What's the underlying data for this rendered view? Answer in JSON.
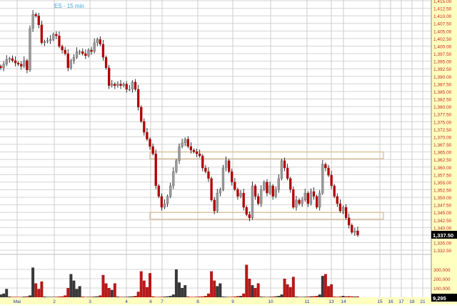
{
  "chart_data": {
    "type": "candlestick",
    "title": "ES - 15 min",
    "price_axis": {
      "ylim": [
        1332.5,
        1415.0
      ],
      "tick_step": 2.5,
      "tick_labels": [
        "1,415.00",
        "1,412.50",
        "1,410.00",
        "1,407.50",
        "1,405.00",
        "1,402.50",
        "1,400.00",
        "1,397.50",
        "1,395.00",
        "1,392.50",
        "1,390.00",
        "1,387.50",
        "1,385.00",
        "1,382.50",
        "1,380.00",
        "1,377.50",
        "1,375.00",
        "1,372.50",
        "1,370.00",
        "1,367.50",
        "1,365.00",
        "1,362.50",
        "1,360.00",
        "1,357.50",
        "1,355.00",
        "1,352.50",
        "1,350.00",
        "1,347.50",
        "1,345.00",
        "1,342.50",
        "1,340.00",
        "1,337.50",
        "1,335.00",
        "1,332.50"
      ],
      "last_price_label": "1,337.50"
    },
    "volume_axis": {
      "tick_labels": [
        "300,000",
        "200,000",
        "100,000"
      ],
      "tick_values": [
        300000,
        200000,
        100000
      ],
      "last_volume_label": "9,295"
    },
    "date_labels": [
      "Mai",
      "2",
      "3",
      "4",
      "6",
      "7",
      "8",
      "9",
      "10",
      "11",
      "13",
      "14",
      "15",
      "16",
      "17",
      "18",
      "21"
    ],
    "grid": true,
    "colors": {
      "down": "#b00000",
      "up": "#999999",
      "wick": "#000000",
      "axis_bg": "#ffffc0",
      "axis_text": "#cc2020",
      "date_text": "#2030c0",
      "title": "#40a8e0",
      "zone": "#d8b890"
    },
    "closes": [
      1392.8,
      1394.0,
      1395.6,
      1395.9,
      1395.2,
      1394.4,
      1394.0,
      1393.3,
      1395.2,
      1392.1,
      1405.8,
      1410.5,
      1410.0,
      1407.0,
      1401.1,
      1401.5,
      1401.8,
      1402.2,
      1403.9,
      1403.4,
      1399.9,
      1398.7,
      1397.5,
      1392.8,
      1395.2,
      1396.3,
      1398.2,
      1398.2,
      1397.5,
      1396.8,
      1398.7,
      1398.2,
      1401.1,
      1402.2,
      1400.6,
      1396.3,
      1392.8,
      1386.9,
      1387.4,
      1386.9,
      1387.4,
      1386.9,
      1387.4,
      1385.7,
      1385.7,
      1388.1,
      1385.7,
      1379.8,
      1375.1,
      1371.5,
      1369.2,
      1366.8,
      1364.4,
      1353.8,
      1350.3,
      1346.7,
      1347.9,
      1350.3,
      1353.8,
      1358.5,
      1362.1,
      1366.8,
      1368.0,
      1369.2,
      1366.8,
      1365.6,
      1365.1,
      1364.4,
      1363.7,
      1359.7,
      1358.5,
      1356.2,
      1349.1,
      1345.5,
      1351.4,
      1352.6,
      1359.7,
      1362.1,
      1358.5,
      1355.0,
      1352.6,
      1350.3,
      1351.4,
      1346.7,
      1344.3,
      1343.2,
      1353.8,
      1350.3,
      1347.9,
      1352.6,
      1355.0,
      1351.4,
      1353.8,
      1350.3,
      1352.6,
      1356.2,
      1362.1,
      1359.7,
      1356.2,
      1352.6,
      1346.7,
      1349.1,
      1347.9,
      1349.1,
      1351.4,
      1347.9,
      1351.9,
      1350.3,
      1346.7,
      1351.4,
      1360.9,
      1359.7,
      1357.3,
      1353.8,
      1350.3,
      1347.9,
      1345.5,
      1346.7,
      1343.2,
      1340.8,
      1338.4,
      1338.9,
      1337.5
    ],
    "volumes": [
      30000,
      40000,
      90000,
      8000,
      5000,
      5000,
      5000,
      5000,
      8000,
      10000,
      20000,
      320000,
      150000,
      90000,
      170000,
      8000,
      5000,
      5000,
      5000,
      6000,
      8000,
      10000,
      20000,
      100000,
      250000,
      180000,
      90000,
      120000,
      8000,
      5000,
      5000,
      6000,
      8000,
      10000,
      20000,
      240000,
      150000,
      100000,
      80000,
      150000,
      8000,
      5000,
      5000,
      6000,
      8000,
      10000,
      15000,
      60000,
      280000,
      180000,
      110000,
      260000,
      10000,
      5000,
      5000,
      6000,
      8000,
      10000,
      15000,
      30000,
      300000,
      160000,
      100000,
      130000,
      8000,
      5000,
      5000,
      6000,
      8000,
      10000,
      15000,
      40000,
      280000,
      180000,
      120000,
      150000,
      8000,
      6000,
      5000,
      6000,
      8000,
      12000,
      15000,
      40000,
      350000,
      200000,
      130000,
      100000,
      150000,
      8000,
      6000,
      5000,
      6000,
      8000,
      10000,
      15000,
      30000,
      200000,
      140000,
      110000,
      220000,
      8000,
      6000,
      5000,
      6000,
      8000,
      10000,
      12000,
      15000,
      30000,
      230000,
      250000,
      120000,
      140000,
      8000,
      6000,
      8000,
      15000,
      10000,
      12000,
      10000,
      8000,
      9295
    ],
    "annotations": [
      {
        "type": "price-zone",
        "from": 1362.75,
        "to": 1365.0
      },
      {
        "type": "price-zone",
        "from": 1342.75,
        "to": 1345.0
      }
    ]
  }
}
